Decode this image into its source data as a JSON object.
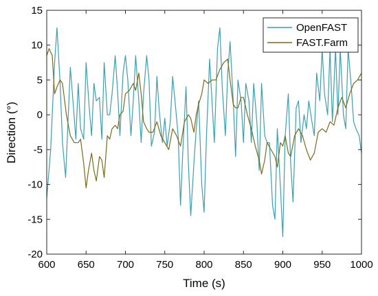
{
  "chart_data": {
    "type": "line",
    "title": "",
    "xlabel": "Time (s)",
    "ylabel": "Direction (°)",
    "xlim": [
      600,
      1000
    ],
    "ylim": [
      -20,
      15
    ],
    "xticks": [
      600,
      650,
      700,
      750,
      800,
      850,
      900,
      950,
      1000
    ],
    "yticks": [
      15,
      10,
      5,
      0,
      -5,
      -10,
      -15,
      -20
    ],
    "grid": false,
    "legend_position": "top-right",
    "series": [
      {
        "name": "OpenFAST",
        "color": "#3a9fb0",
        "x": [
          600,
          605,
          610,
          613,
          617,
          620,
          624,
          627,
          630,
          634,
          637,
          640,
          643,
          647,
          650,
          654,
          657,
          660,
          663,
          667,
          670,
          673,
          677,
          680,
          683,
          687,
          690,
          693,
          697,
          700,
          703,
          707,
          710,
          713,
          717,
          720,
          723,
          727,
          730,
          733,
          737,
          740,
          743,
          747,
          750,
          753,
          757,
          760,
          763,
          767,
          770,
          773,
          777,
          780,
          783,
          787,
          790,
          793,
          797,
          800,
          803,
          807,
          810,
          813,
          817,
          820,
          823,
          827,
          830,
          833,
          837,
          840,
          843,
          847,
          850,
          853,
          857,
          860,
          863,
          867,
          870,
          873,
          877,
          880,
          883,
          887,
          890,
          893,
          897,
          900,
          903,
          907,
          910,
          913,
          917,
          920,
          923,
          927,
          930,
          933,
          937,
          940,
          943,
          947,
          950,
          953,
          957,
          960,
          963,
          967,
          970,
          973,
          977,
          980,
          983,
          987,
          990,
          993,
          997,
          1000
        ],
        "y": [
          -12,
          -5,
          7.5,
          12.5,
          4.5,
          -4,
          -9,
          -1,
          6.8,
          1,
          -3.5,
          4.5,
          -2,
          -3.5,
          7.5,
          1,
          -3,
          4.5,
          2,
          2.5,
          -3.5,
          7.5,
          0,
          0,
          3,
          8.5,
          3.5,
          -3,
          6,
          8.5,
          5,
          -3,
          2,
          8.5,
          2,
          -4,
          3,
          8.5,
          5,
          -4.5,
          -2.5,
          5.5,
          0.5,
          -4,
          -0.5,
          -4.5,
          -1,
          5.5,
          2,
          -3,
          -13,
          -5,
          4,
          -7,
          -14.5,
          -7,
          -2,
          2,
          -10,
          -14,
          -3,
          8,
          2,
          -4,
          9.5,
          12.5,
          4,
          -3,
          6,
          10.5,
          2,
          -6,
          5,
          2,
          -4,
          4.5,
          2,
          -4,
          4.5,
          -1,
          -8,
          4.5,
          -3,
          -4,
          -4,
          -13,
          -15,
          -2,
          -10.5,
          -17.5,
          -3,
          3,
          -7,
          -12.5,
          1,
          2,
          -4,
          0,
          -2,
          2,
          -1,
          -3,
          6,
          2,
          9.5,
          3,
          0,
          9.5,
          -1,
          9.5,
          0,
          9.5,
          0,
          -2,
          9.5,
          4,
          -1,
          -2,
          -3,
          -5.5
        ]
      },
      {
        "name": "FAST.Farm",
        "color": "#7a6a18",
        "x": [
          600,
          603,
          607,
          610,
          613,
          617,
          620,
          625,
          630,
          635,
          640,
          643,
          647,
          650,
          653,
          657,
          660,
          663,
          667,
          670,
          673,
          677,
          680,
          683,
          687,
          690,
          693,
          697,
          700,
          705,
          710,
          713,
          717,
          720,
          723,
          727,
          730,
          735,
          740,
          745,
          750,
          755,
          760,
          765,
          770,
          775,
          780,
          783,
          787,
          790,
          793,
          797,
          800,
          805,
          810,
          815,
          820,
          825,
          830,
          833,
          837,
          840,
          843,
          847,
          850,
          855,
          860,
          865,
          870,
          873,
          877,
          880,
          885,
          890,
          893,
          897,
          900,
          903,
          907,
          910,
          915,
          920,
          925,
          930,
          935,
          940,
          945,
          950,
          955,
          960,
          965,
          970,
          975,
          980,
          985,
          990,
          995,
          1000
        ],
        "y": [
          8.5,
          9.5,
          8.5,
          3,
          4,
          5,
          4.5,
          0,
          -3,
          -4,
          -4,
          -3.5,
          -7,
          -10.5,
          -8,
          -5.5,
          -8,
          -9.5,
          -6,
          -6.5,
          -9,
          -3,
          -3.5,
          -2,
          -1.5,
          -2,
          0,
          0.5,
          3,
          3.5,
          4.5,
          3.5,
          6,
          3,
          -1,
          -2,
          -2.5,
          -2.5,
          -1,
          -3,
          -4,
          -5,
          -2,
          -3,
          -4.5,
          -1,
          0,
          -0.5,
          -2.5,
          0,
          1.5,
          3,
          5,
          4.5,
          5,
          5,
          6.5,
          7.5,
          8,
          5,
          1.5,
          1,
          1,
          2.5,
          2.5,
          0,
          -2,
          -4.5,
          -6.5,
          -8.5,
          -6.5,
          -4,
          -5,
          -6,
          -7.5,
          -4,
          -4.5,
          -3,
          -5.5,
          -6,
          -3,
          -2,
          -3,
          -5,
          -6.5,
          -5.5,
          -2.5,
          -2,
          -2.5,
          -1,
          -1.5,
          1,
          2.5,
          1,
          3,
          4.5,
          5,
          6
        ]
      }
    ]
  }
}
